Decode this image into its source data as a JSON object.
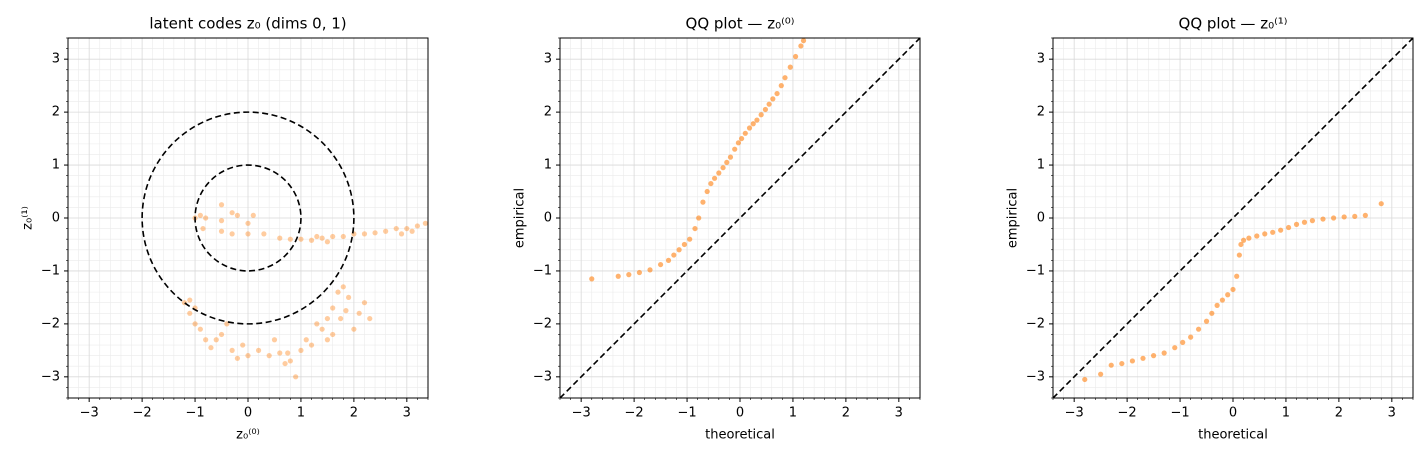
{
  "chart_data": [
    {
      "type": "scatter",
      "title": "latent codes z₀ (dims 0, 1)",
      "xlabel": "z₀⁽⁰⁾",
      "ylabel": "z₀⁽¹⁾",
      "color": "#ff7f0e",
      "alpha": 0.4,
      "circles": [
        1,
        2
      ],
      "diagonal": false,
      "grid": true,
      "xlim": [
        -3.4,
        3.4
      ],
      "ylim": [
        -3.4,
        3.4
      ],
      "xticks": [
        {
          "value": -3,
          "label": "−3"
        },
        {
          "value": -2,
          "label": "−2"
        },
        {
          "value": -1,
          "label": "−1"
        },
        0,
        1,
        2,
        3
      ],
      "yticks": [
        {
          "value": -3,
          "label": "−3"
        },
        {
          "value": -2,
          "label": "−2"
        },
        {
          "value": -1,
          "label": "−1"
        },
        0,
        1,
        2,
        3
      ],
      "minorticks": [
        -3.4,
        -3.2,
        -2.8,
        -2.6,
        -2.4,
        -2.2,
        -1.8,
        -1.6,
        -1.4,
        -1.2,
        -0.8,
        -0.6,
        -0.4,
        -0.2,
        0.2,
        0.4,
        0.6,
        0.8,
        1.2,
        1.4,
        1.6,
        1.8,
        2.2,
        2.4,
        2.6,
        2.8,
        3.2,
        3.4
      ],
      "x": [
        -1,
        -0.9,
        -0.8,
        -0.5,
        -0.3,
        -0.2,
        0,
        0.1,
        -0.5,
        -0.3,
        0,
        0.3,
        0.6,
        0.8,
        1.0,
        1.2,
        1.4,
        1.6,
        1.8,
        2.0,
        2.2,
        2.4,
        2.6,
        2.8,
        3.0,
        3.2,
        3.35,
        2.9,
        3.1,
        1.3,
        1.5,
        -0.85,
        -0.5,
        -1.2,
        -1.1,
        -1.0,
        -1.1,
        -1.0,
        -0.9,
        -0.8,
        -0.6,
        -0.5,
        -0.7,
        -0.3,
        -0.2,
        0,
        0.2,
        0.4,
        0.6,
        0.8,
        0.75,
        1.0,
        1.1,
        1.2,
        1.4,
        1.5,
        1.6,
        1.7,
        1.8,
        1.9,
        1.75,
        1.6,
        2.0,
        2.2,
        2.3,
        2.1,
        0.9,
        1.3,
        1.5,
        0.5,
        -0.4,
        -0.1,
        0.7,
        1.85
      ],
      "y": [
        0.0,
        0.05,
        0.0,
        0.25,
        0.1,
        0.05,
        -0.1,
        0.05,
        -0.25,
        -0.3,
        -0.3,
        -0.3,
        -0.38,
        -0.4,
        -0.4,
        -0.42,
        -0.38,
        -0.35,
        -0.35,
        -0.3,
        -0.3,
        -0.28,
        -0.25,
        -0.2,
        -0.2,
        -0.15,
        -0.1,
        -0.3,
        -0.25,
        -0.35,
        -0.45,
        -0.2,
        -0.05,
        -1.6,
        -1.55,
        -1.7,
        -1.8,
        -2.0,
        -2.1,
        -2.3,
        -2.3,
        -2.2,
        -2.45,
        -2.5,
        -2.65,
        -2.6,
        -2.5,
        -2.6,
        -2.55,
        -2.7,
        -2.55,
        -2.5,
        -2.3,
        -2.4,
        -2.1,
        -1.9,
        -1.7,
        -1.4,
        -1.3,
        -1.5,
        -1.9,
        -2.2,
        -2.1,
        -1.6,
        -1.9,
        -1.8,
        -3.0,
        -2.0,
        -2.3,
        -2.3,
        -2.0,
        -2.4,
        -2.75,
        -1.75
      ]
    },
    {
      "type": "scatter",
      "title": "QQ plot — z₀⁽⁰⁾",
      "xlabel": "theoretical",
      "ylabel": "empirical",
      "color": "#ff7f0e",
      "alpha": 0.6,
      "circles": [],
      "diagonal": true,
      "grid": true,
      "xlim": [
        -3.4,
        3.4
      ],
      "ylim": [
        -3.4,
        3.4
      ],
      "xticks": [
        {
          "value": -3,
          "label": "−3"
        },
        {
          "value": -2,
          "label": "−2"
        },
        {
          "value": -1,
          "label": "−1"
        },
        0,
        1,
        2,
        3
      ],
      "yticks": [
        {
          "value": -3,
          "label": "−3"
        },
        {
          "value": -2,
          "label": "−2"
        },
        {
          "value": -1,
          "label": "−1"
        },
        0,
        1,
        2,
        3
      ],
      "minorticks": [
        -3.4,
        -3.2,
        -2.8,
        -2.6,
        -2.4,
        -2.2,
        -1.8,
        -1.6,
        -1.4,
        -1.2,
        -0.8,
        -0.6,
        -0.4,
        -0.2,
        0.2,
        0.4,
        0.6,
        0.8,
        1.2,
        1.4,
        1.6,
        1.8,
        2.2,
        2.4,
        2.6,
        2.8,
        3.2,
        3.4
      ],
      "x": [
        -2.8,
        -2.3,
        -2.1,
        -1.9,
        -1.7,
        -1.5,
        -1.35,
        -1.25,
        -1.15,
        -1.05,
        -0.95,
        -0.85,
        -0.78,
        -0.7,
        -0.62,
        -0.55,
        -0.48,
        -0.4,
        -0.32,
        -0.25,
        -0.18,
        -0.1,
        -0.03,
        0.03,
        0.1,
        0.18,
        0.25,
        0.32,
        0.4,
        0.48,
        0.55,
        0.62,
        0.7,
        0.78,
        0.85,
        0.95,
        1.05,
        1.15,
        1.2
      ],
      "y": [
        -1.15,
        -1.1,
        -1.07,
        -1.03,
        -0.98,
        -0.88,
        -0.8,
        -0.7,
        -0.6,
        -0.5,
        -0.4,
        -0.2,
        0.0,
        0.3,
        0.5,
        0.65,
        0.75,
        0.85,
        0.95,
        1.05,
        1.15,
        1.3,
        1.42,
        1.5,
        1.6,
        1.7,
        1.78,
        1.85,
        1.95,
        2.05,
        2.15,
        2.25,
        2.35,
        2.5,
        2.65,
        2.85,
        3.05,
        3.25,
        3.35
      ]
    },
    {
      "type": "scatter",
      "title": "QQ plot — z₀⁽¹⁾",
      "xlabel": "theoretical",
      "ylabel": "empirical",
      "color": "#ff7f0e",
      "alpha": 0.6,
      "circles": [],
      "diagonal": true,
      "grid": true,
      "xlim": [
        -3.4,
        3.4
      ],
      "ylim": [
        -3.4,
        3.4
      ],
      "xticks": [
        {
          "value": -3,
          "label": "−3"
        },
        {
          "value": -2,
          "label": "−2"
        },
        {
          "value": -1,
          "label": "−1"
        },
        0,
        1,
        2,
        3
      ],
      "yticks": [
        {
          "value": -3,
          "label": "−3"
        },
        {
          "value": -2,
          "label": "−2"
        },
        {
          "value": -1,
          "label": "−1"
        },
        0,
        1,
        2,
        3
      ],
      "minorticks": [
        -3.4,
        -3.2,
        -2.8,
        -2.6,
        -2.4,
        -2.2,
        -1.8,
        -1.6,
        -1.4,
        -1.2,
        -0.8,
        -0.6,
        -0.4,
        -0.2,
        0.2,
        0.4,
        0.6,
        0.8,
        1.2,
        1.4,
        1.6,
        1.8,
        2.2,
        2.4,
        2.6,
        2.8,
        3.2,
        3.4
      ],
      "x": [
        -2.8,
        -2.5,
        -2.3,
        -2.1,
        -1.9,
        -1.7,
        -1.5,
        -1.3,
        -1.1,
        -0.95,
        -0.8,
        -0.65,
        -0.5,
        -0.4,
        -0.3,
        -0.2,
        -0.1,
        0.0,
        0.07,
        0.12,
        0.15,
        0.2,
        0.3,
        0.45,
        0.6,
        0.75,
        0.9,
        1.05,
        1.2,
        1.35,
        1.5,
        1.7,
        1.9,
        2.1,
        2.3,
        2.5,
        2.8
      ],
      "y": [
        -3.05,
        -2.95,
        -2.78,
        -2.75,
        -2.7,
        -2.65,
        -2.6,
        -2.55,
        -2.45,
        -2.35,
        -2.25,
        -2.1,
        -1.95,
        -1.8,
        -1.65,
        -1.55,
        -1.45,
        -1.35,
        -1.1,
        -0.7,
        -0.5,
        -0.42,
        -0.38,
        -0.34,
        -0.3,
        -0.27,
        -0.23,
        -0.18,
        -0.12,
        -0.08,
        -0.05,
        -0.02,
        0.0,
        0.02,
        0.03,
        0.05,
        0.27
      ]
    }
  ]
}
